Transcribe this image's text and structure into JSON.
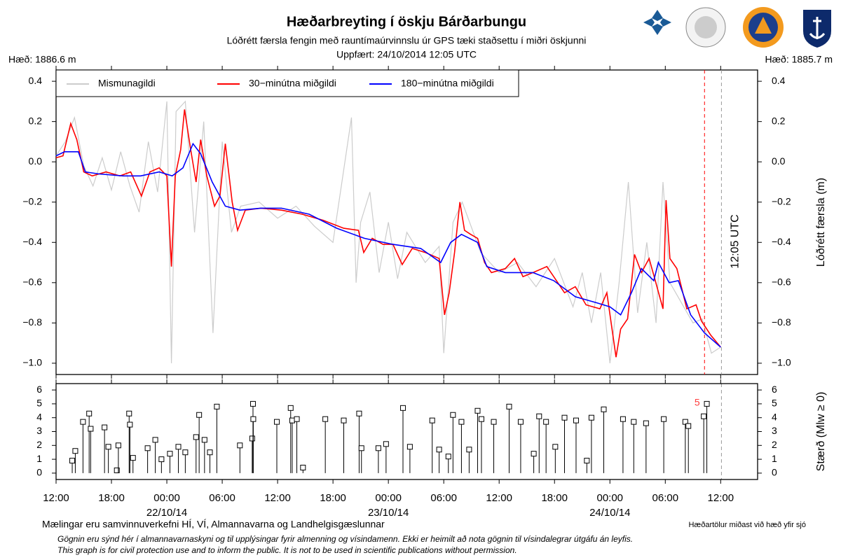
{
  "header": {
    "title": "Hæðarbreyting í öskju Bárðarbungu",
    "subtitle": "Lóðrétt færsla fengin með rauntímaúrvinnslu úr GPS tæki staðsettu í miðri öskjunni",
    "updated": "Uppfært: 24/10/2014 12:05 UTC",
    "height_left": "Hæð: 1886.6 m",
    "height_right": "Hæð: 1885.7 m"
  },
  "footer": {
    "credit": "Mælingar eru samvinnuverkefni HÍ, VÍ, Almannavarna og Landhelgisgæslunnar",
    "datum": "Hæðartölur miðast við hæð yfir sjó",
    "note_is": "Gögnin eru sýnd hér í almannavarnaskyni og til upplýsingar fyrir almenning og vísindamenn. Ekki er heimilt að nota gögnin til vísindalegrar útgáfu án leyfis.",
    "note_en": "This graph is for civil protection use and to inform the public. It is not to be used in scientific publications without permission."
  },
  "chart_data": [
    {
      "type": "line",
      "ylabel": "Lóðrétt færsla (m)",
      "xlim": [
        "2014-10-21T12:00",
        "2014-10-24T16:00"
      ],
      "ylim": [
        -1.056,
        0.456
      ],
      "yticks": [
        {
          "value": -1.0,
          "label": "−1.0"
        },
        {
          "value": -0.8,
          "label": "−0.8"
        },
        {
          "value": -0.6,
          "label": "−0.6"
        },
        {
          "value": -0.4,
          "label": "−0.4"
        },
        {
          "value": -0.2,
          "label": "−0.2"
        },
        {
          "value": 0,
          "label": "0.0"
        },
        0.2,
        0.4
      ],
      "legend": "upper left",
      "vlines": [
        {
          "x": "2014-10-24T10:15",
          "color": "#ff0000"
        },
        {
          "x": "2014-10-24T12:05",
          "color": "#999999",
          "label": "12:05 UTC"
        }
      ],
      "series": [
        {
          "name": "Mismunagildi",
          "color": "#cccccc",
          "x": [
            "2014-10-21T12:00",
            "2014-10-21T13:00",
            "2014-10-21T14:00",
            "2014-10-21T15:00",
            "2014-10-21T16:00",
            "2014-10-21T17:00",
            "2014-10-21T18:00",
            "2014-10-21T19:00",
            "2014-10-21T20:00",
            "2014-10-21T21:00",
            "2014-10-21T22:00",
            "2014-10-21T23:00",
            "2014-10-22T00:00",
            "2014-10-22T00:30",
            "2014-10-22T01:00",
            "2014-10-22T02:00",
            "2014-10-22T03:00",
            "2014-10-22T04:00",
            "2014-10-22T05:00",
            "2014-10-22T06:00",
            "2014-10-22T07:00",
            "2014-10-22T08:00",
            "2014-10-22T10:00",
            "2014-10-22T12:00",
            "2014-10-22T14:00",
            "2014-10-22T16:00",
            "2014-10-22T18:00",
            "2014-10-22T20:00",
            "2014-10-22T20:30",
            "2014-10-22T21:00",
            "2014-10-22T22:00",
            "2014-10-22T23:00",
            "2014-10-23T00:00",
            "2014-10-23T01:00",
            "2014-10-23T02:00",
            "2014-10-23T04:00",
            "2014-10-23T05:30",
            "2014-10-23T06:00",
            "2014-10-23T07:00",
            "2014-10-23T08:00",
            "2014-10-23T10:00",
            "2014-10-23T12:00",
            "2014-10-23T14:00",
            "2014-10-23T16:00",
            "2014-10-23T18:00",
            "2014-10-23T20:00",
            "2014-10-23T21:00",
            "2014-10-23T22:00",
            "2014-10-23T23:00",
            "2014-10-24T00:00",
            "2014-10-24T01:00",
            "2014-10-24T02:00",
            "2014-10-24T03:00",
            "2014-10-24T04:00",
            "2014-10-24T05:00",
            "2014-10-24T05:45",
            "2014-10-24T06:30",
            "2014-10-24T08:00",
            "2014-10-24T09:00",
            "2014-10-24T10:00",
            "2014-10-24T11:00",
            "2014-10-24T12:00"
          ],
          "values": [
            0.03,
            0.1,
            0.22,
            -0.02,
            -0.12,
            0.02,
            -0.14,
            0.05,
            -0.12,
            -0.25,
            0.1,
            -0.15,
            0.3,
            -1.0,
            0.25,
            0.3,
            -0.35,
            0.2,
            -0.85,
            0.1,
            -0.35,
            -0.22,
            -0.2,
            -0.28,
            -0.22,
            -0.32,
            -0.4,
            0.22,
            -0.6,
            -0.3,
            -0.15,
            -0.55,
            -0.3,
            -0.58,
            -0.35,
            -0.5,
            -0.42,
            -0.95,
            -0.3,
            -0.2,
            -0.45,
            -0.55,
            -0.5,
            -0.62,
            -0.48,
            -0.72,
            -0.55,
            -0.8,
            -0.55,
            -1.0,
            -0.6,
            -0.1,
            -0.75,
            -0.4,
            -0.8,
            -0.1,
            -0.6,
            -0.72,
            -0.8,
            -0.78,
            -0.95,
            -0.92
          ]
        },
        {
          "name": "30−minútna miðgildi",
          "color": "#ff0000",
          "x": [
            "2014-10-21T12:00",
            "2014-10-21T12:45",
            "2014-10-21T13:35",
            "2014-10-21T14:15",
            "2014-10-21T15:00",
            "2014-10-21T15:55",
            "2014-10-21T17:25",
            "2014-10-21T18:55",
            "2014-10-21T20:05",
            "2014-10-21T21:15",
            "2014-10-21T22:10",
            "2014-10-21T23:10",
            "2014-10-22T00:00",
            "2014-10-22T00:30",
            "2014-10-22T00:55",
            "2014-10-22T01:30",
            "2014-10-22T01:55",
            "2014-10-22T02:35",
            "2014-10-22T03:10",
            "2014-10-22T03:40",
            "2014-10-22T04:20",
            "2014-10-22T05:10",
            "2014-10-22T05:45",
            "2014-10-22T06:20",
            "2014-10-22T07:05",
            "2014-10-22T07:40",
            "2014-10-22T08:30",
            "2014-10-22T10:10",
            "2014-10-22T12:25",
            "2014-10-22T14:40",
            "2014-10-22T16:55",
            "2014-10-22T19:10",
            "2014-10-22T20:45",
            "2014-10-22T21:20",
            "2014-10-22T22:15",
            "2014-10-22T23:25",
            "2014-10-23T00:30",
            "2014-10-23T01:30",
            "2014-10-23T02:35",
            "2014-10-23T04:00",
            "2014-10-23T05:30",
            "2014-10-23T06:05",
            "2014-10-23T06:35",
            "2014-10-23T07:10",
            "2014-10-23T07:45",
            "2014-10-23T08:15",
            "2014-10-23T08:55",
            "2014-10-23T09:40",
            "2014-10-23T10:25",
            "2014-10-23T11:10",
            "2014-10-23T12:40",
            "2014-10-23T13:40",
            "2014-10-23T14:35",
            "2014-10-23T15:40",
            "2014-10-23T17:10",
            "2014-10-23T17:55",
            "2014-10-23T19:05",
            "2014-10-23T20:15",
            "2014-10-23T21:25",
            "2014-10-23T22:55",
            "2014-10-23T23:40",
            "2014-10-24T00:40",
            "2014-10-24T01:10",
            "2014-10-24T01:55",
            "2014-10-24T02:40",
            "2014-10-24T03:25",
            "2014-10-24T04:15",
            "2014-10-24T04:55",
            "2014-10-24T05:45",
            "2014-10-24T06:05",
            "2014-10-24T06:30",
            "2014-10-24T07:15",
            "2014-10-24T08:20",
            "2014-10-24T09:20",
            "2014-10-24T09:55",
            "2014-10-24T10:55",
            "2014-10-24T12:00"
          ],
          "values": [
            0.02,
            0.03,
            0.19,
            0.11,
            -0.05,
            -0.07,
            -0.05,
            -0.07,
            -0.05,
            -0.17,
            -0.05,
            -0.03,
            -0.07,
            -0.52,
            -0.07,
            0.06,
            0.26,
            0.06,
            -0.1,
            0.11,
            -0.07,
            -0.22,
            -0.17,
            0.09,
            -0.2,
            -0.34,
            -0.24,
            -0.23,
            -0.24,
            -0.26,
            -0.29,
            -0.33,
            -0.34,
            -0.45,
            -0.38,
            -0.41,
            -0.41,
            -0.51,
            -0.43,
            -0.45,
            -0.48,
            -0.76,
            -0.65,
            -0.45,
            -0.2,
            -0.34,
            -0.36,
            -0.38,
            -0.5,
            -0.55,
            -0.53,
            -0.48,
            -0.57,
            -0.55,
            -0.52,
            -0.57,
            -0.65,
            -0.62,
            -0.71,
            -0.73,
            -0.65,
            -0.97,
            -0.83,
            -0.78,
            -0.46,
            -0.55,
            -0.48,
            -0.59,
            -0.73,
            -0.19,
            -0.48,
            -0.53,
            -0.73,
            -0.71,
            -0.79,
            -0.86,
            -0.92
          ]
        },
        {
          "name": "180−minútna miðgildi",
          "color": "#0000ff",
          "x": [
            "2014-10-21T12:00",
            "2014-10-21T12:55",
            "2014-10-21T14:25",
            "2014-10-21T15:10",
            "2014-10-21T16:40",
            "2014-10-21T19:15",
            "2014-10-21T21:10",
            "2014-10-21T23:10",
            "2014-10-22T00:35",
            "2014-10-22T01:45",
            "2014-10-22T02:50",
            "2014-10-22T03:40",
            "2014-10-22T04:55",
            "2014-10-22T06:20",
            "2014-10-22T07:55",
            "2014-10-22T10:10",
            "2014-10-22T12:25",
            "2014-10-22T15:25",
            "2014-10-22T18:25",
            "2014-10-22T21:25",
            "2014-10-23T00:30",
            "2014-10-23T03:30",
            "2014-10-23T05:40",
            "2014-10-23T06:45",
            "2014-10-23T07:55",
            "2014-10-23T09:40",
            "2014-10-23T10:40",
            "2014-10-23T12:40",
            "2014-10-23T15:40",
            "2014-10-23T17:55",
            "2014-10-23T20:15",
            "2014-10-23T22:35",
            "2014-10-24T00:00",
            "2014-10-24T01:10",
            "2014-10-24T02:20",
            "2014-10-24T03:25",
            "2014-10-24T04:45",
            "2014-10-24T05:15",
            "2014-10-24T06:25",
            "2014-10-24T07:25",
            "2014-10-24T08:45",
            "2014-10-24T10:15",
            "2014-10-24T12:00"
          ],
          "values": [
            0.03,
            0.05,
            0.05,
            -0.05,
            -0.06,
            -0.07,
            -0.07,
            -0.05,
            -0.07,
            -0.03,
            0.09,
            0.04,
            -0.1,
            -0.22,
            -0.24,
            -0.23,
            -0.23,
            -0.26,
            -0.33,
            -0.38,
            -0.41,
            -0.43,
            -0.5,
            -0.4,
            -0.36,
            -0.4,
            -0.52,
            -0.55,
            -0.55,
            -0.59,
            -0.67,
            -0.7,
            -0.72,
            -0.76,
            -0.65,
            -0.53,
            -0.59,
            -0.5,
            -0.6,
            -0.59,
            -0.76,
            -0.85,
            -0.92
          ]
        }
      ]
    },
    {
      "type": "stem",
      "ylabel": "Stærð (Mlw ≥ 0)",
      "color": "#000000",
      "xlim": [
        "2014-10-21T12:00",
        "2014-10-24T16:00"
      ],
      "ylim": [
        -0.46,
        6.46
      ],
      "yticks": [
        0,
        1,
        2,
        3,
        4,
        5,
        6
      ],
      "xticks": [
        {
          "value": "2014-10-21T12:00",
          "label": "12:00"
        },
        {
          "value": "2014-10-21T18:00",
          "label": "18:00"
        },
        {
          "value": "2014-10-22T00:00",
          "label": "00:00"
        },
        {
          "value": "2014-10-22T06:00",
          "label": "06:00"
        },
        {
          "value": "2014-10-22T12:00",
          "label": "12:00"
        },
        {
          "value": "2014-10-22T18:00",
          "label": "18:00"
        },
        {
          "value": "2014-10-23T00:00",
          "label": "00:00"
        },
        {
          "value": "2014-10-23T06:00",
          "label": "06:00"
        },
        {
          "value": "2014-10-23T12:00",
          "label": "12:00"
        },
        {
          "value": "2014-10-23T18:00",
          "label": "18:00"
        },
        {
          "value": "2014-10-24T00:00",
          "label": "00:00"
        },
        {
          "value": "2014-10-24T06:00",
          "label": "06:00"
        },
        {
          "value": "2014-10-24T12:00",
          "label": "12:00"
        }
      ],
      "xdates": [
        {
          "value": "2014-10-22T00:00",
          "label": "22/10/14"
        },
        {
          "value": "2014-10-23T00:00",
          "label": "23/10/14"
        },
        {
          "value": "2014-10-24T00:00",
          "label": "24/10/14"
        }
      ],
      "annotations": [
        {
          "text": "5",
          "x": "2014-10-24T09:45",
          "y": 5.05,
          "color": "#ff4040"
        }
      ],
      "x": [
        "2014-10-21T13:45",
        "2014-10-21T14:05",
        "2014-10-21T14:55",
        "2014-10-21T15:35",
        "2014-10-21T15:45",
        "2014-10-21T17:15",
        "2014-10-21T17:40",
        "2014-10-21T18:35",
        "2014-10-21T18:45",
        "2014-10-21T19:55",
        "2014-10-21T20:00",
        "2014-10-21T20:20",
        "2014-10-21T21:55",
        "2014-10-21T22:45",
        "2014-10-21T23:25",
        "2014-10-22T00:20",
        "2014-10-22T01:15",
        "2014-10-22T02:00",
        "2014-10-22T03:10",
        "2014-10-22T03:30",
        "2014-10-22T04:05",
        "2014-10-22T04:40",
        "2014-10-22T05:25",
        "2014-10-22T07:55",
        "2014-10-22T09:15",
        "2014-10-22T09:20",
        "2014-10-22T09:22",
        "2014-10-22T11:55",
        "2014-10-22T13:25",
        "2014-10-22T13:35",
        "2014-10-22T14:05",
        "2014-10-22T14:45",
        "2014-10-22T17:10",
        "2014-10-22T19:10",
        "2014-10-22T20:50",
        "2014-10-22T21:05",
        "2014-10-22T22:55",
        "2014-10-22T23:45",
        "2014-10-23T01:35",
        "2014-10-23T02:20",
        "2014-10-23T04:45",
        "2014-10-23T05:30",
        "2014-10-23T06:30",
        "2014-10-23T07:00",
        "2014-10-23T07:55",
        "2014-10-23T08:45",
        "2014-10-23T09:40",
        "2014-10-23T10:05",
        "2014-10-23T11:25",
        "2014-10-23T13:05",
        "2014-10-23T14:20",
        "2014-10-23T15:45",
        "2014-10-23T16:20",
        "2014-10-23T17:05",
        "2014-10-23T18:05",
        "2014-10-23T19:05",
        "2014-10-23T20:20",
        "2014-10-23T21:30",
        "2014-10-23T22:00",
        "2014-10-23T23:20",
        "2014-10-24T01:25",
        "2014-10-24T02:35",
        "2014-10-24T03:55",
        "2014-10-24T05:50",
        "2014-10-24T08:10",
        "2014-10-24T08:30",
        "2014-10-24T10:10",
        "2014-10-24T10:30"
      ],
      "values": [
        0.9,
        1.6,
        3.7,
        4.3,
        3.2,
        3.3,
        1.9,
        0.2,
        2.0,
        4.3,
        3.5,
        1.1,
        1.8,
        2.4,
        1.0,
        1.4,
        1.9,
        1.5,
        2.6,
        4.2,
        2.4,
        1.5,
        4.8,
        2.0,
        2.5,
        5.0,
        3.9,
        3.7,
        4.7,
        3.8,
        3.9,
        0.4,
        3.9,
        3.8,
        4.3,
        1.8,
        1.8,
        2.1,
        4.7,
        1.9,
        3.8,
        1.7,
        1.2,
        4.2,
        3.7,
        1.7,
        4.5,
        3.9,
        3.7,
        4.8,
        3.7,
        1.4,
        4.1,
        3.7,
        1.9,
        4.0,
        3.8,
        0.9,
        4.0,
        4.6,
        3.9,
        3.7,
        3.6,
        3.9,
        3.7,
        3.4,
        4.1,
        5.0
      ]
    }
  ]
}
